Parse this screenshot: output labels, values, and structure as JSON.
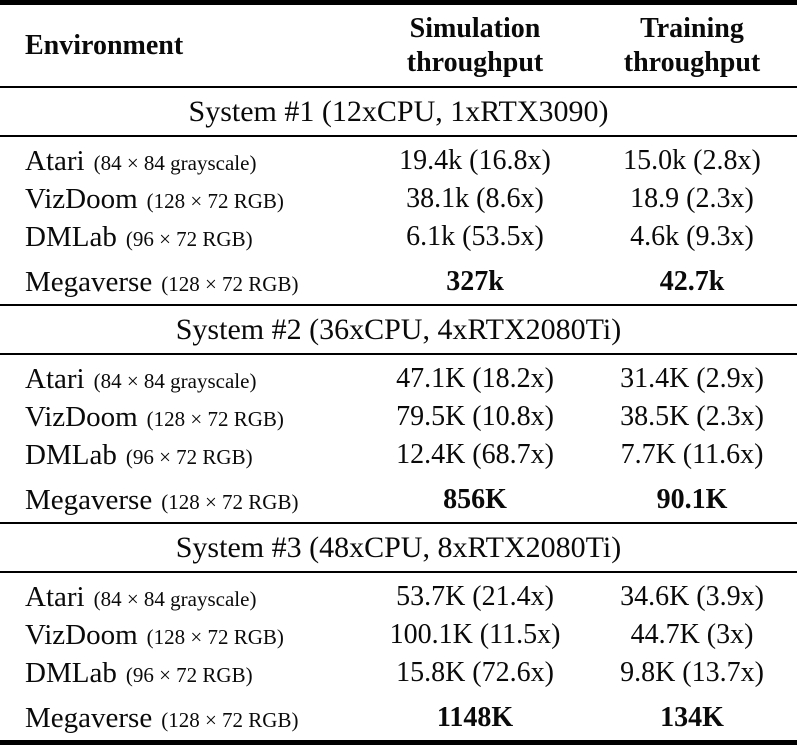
{
  "colors": {
    "background": "#ffffff",
    "text": "#0a0a0a",
    "rule": "#000000"
  },
  "header": {
    "environment": "Environment",
    "simulation_line1": "Simulation",
    "simulation_line2": "throughput",
    "training_line1": "Training",
    "training_line2": "throughput"
  },
  "sections": [
    {
      "title": "System #1 (12xCPU, 1xRTX3090)",
      "rows": [
        {
          "env": "Atari",
          "spec": "(84 × 84 grayscale)",
          "sim": "19.4k (16.8x)",
          "train": "15.0k (2.8x)",
          "bold": false
        },
        {
          "env": "VizDoom",
          "spec": "(128 × 72 RGB)",
          "sim": "38.1k (8.6x)",
          "train": "18.9 (2.3x)",
          "bold": false
        },
        {
          "env": "DMLab",
          "spec": "(96 × 72 RGB)",
          "sim": "6.1k (53.5x)",
          "train": "4.6k (9.3x)",
          "bold": false
        },
        {
          "env": "Megaverse",
          "spec": "(128 × 72 RGB)",
          "sim": "327k",
          "train": "42.7k",
          "bold": true
        }
      ]
    },
    {
      "title": "System #2 (36xCPU, 4xRTX2080Ti)",
      "rows": [
        {
          "env": "Atari",
          "spec": "(84 × 84 grayscale)",
          "sim": "47.1K (18.2x)",
          "train": "31.4K (2.9x)",
          "bold": false
        },
        {
          "env": "VizDoom",
          "spec": "(128 × 72 RGB)",
          "sim": "79.5K (10.8x)",
          "train": "38.5K (2.3x)",
          "bold": false
        },
        {
          "env": "DMLab",
          "spec": "(96 × 72 RGB)",
          "sim": "12.4K (68.7x)",
          "train": "7.7K (11.6x)",
          "bold": false
        },
        {
          "env": "Megaverse",
          "spec": "(128 × 72 RGB)",
          "sim": "856K",
          "train": "90.1K",
          "bold": true
        }
      ]
    },
    {
      "title": "System #3 (48xCPU, 8xRTX2080Ti)",
      "rows": [
        {
          "env": "Atari",
          "spec": "(84 × 84 grayscale)",
          "sim": "53.7K (21.4x)",
          "train": "34.6K (3.9x)",
          "bold": false
        },
        {
          "env": "VizDoom",
          "spec": "(128 × 72 RGB)",
          "sim": "100.1K (11.5x)",
          "train": "44.7K (3x)",
          "bold": false
        },
        {
          "env": "DMLab",
          "spec": "(96 × 72 RGB)",
          "sim": "15.8K (72.6x)",
          "train": "9.8K (13.7x)",
          "bold": false
        },
        {
          "env": "Megaverse",
          "spec": "(128 × 72 RGB)",
          "sim": "1148K",
          "train": "134K",
          "bold": true
        }
      ]
    }
  ]
}
